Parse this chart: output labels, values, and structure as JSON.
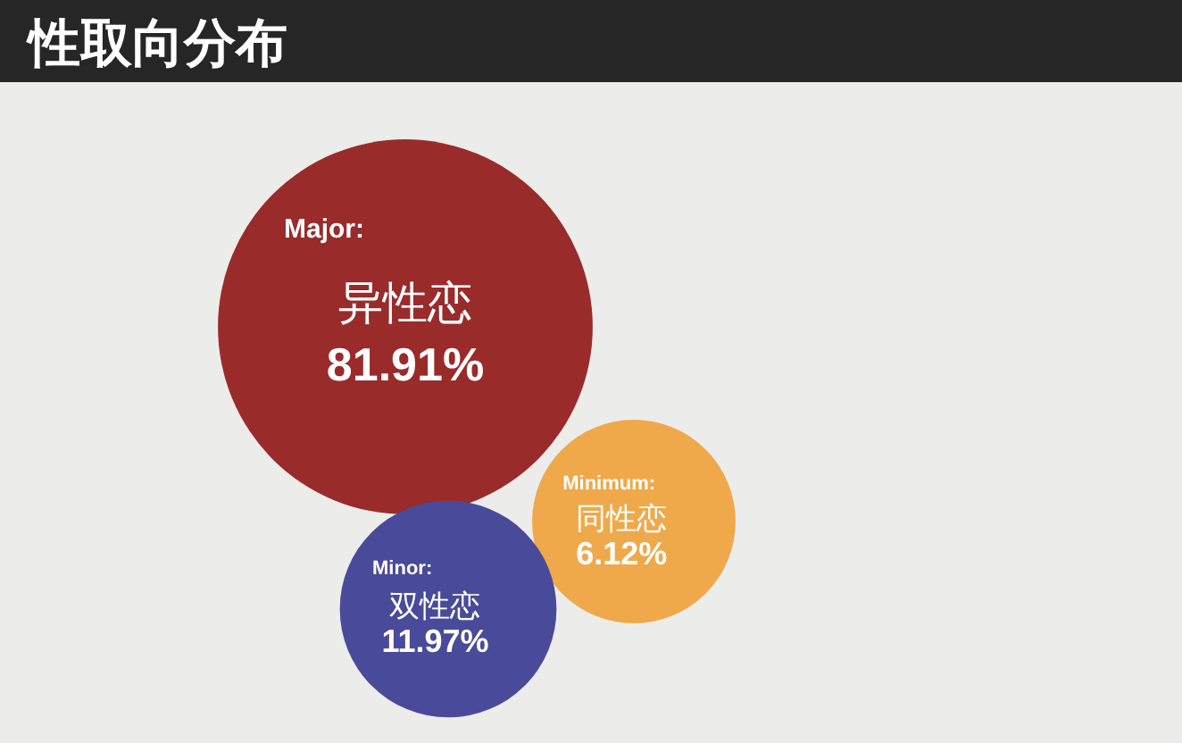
{
  "chart_data": {
    "type": "other",
    "title": "性取向分布",
    "categories": [
      "异性恋",
      "同性恋",
      "双性恋"
    ],
    "values": [
      81.91,
      6.12,
      11.97
    ],
    "value_labels": [
      "81.91%",
      "6.12%",
      "11.97%"
    ],
    "colors": [
      "#9a2b2b",
      "#efa94a",
      "#4a4a9a"
    ],
    "annotations": [
      "Major:",
      "Minimum:",
      "Minor:"
    ]
  }
}
